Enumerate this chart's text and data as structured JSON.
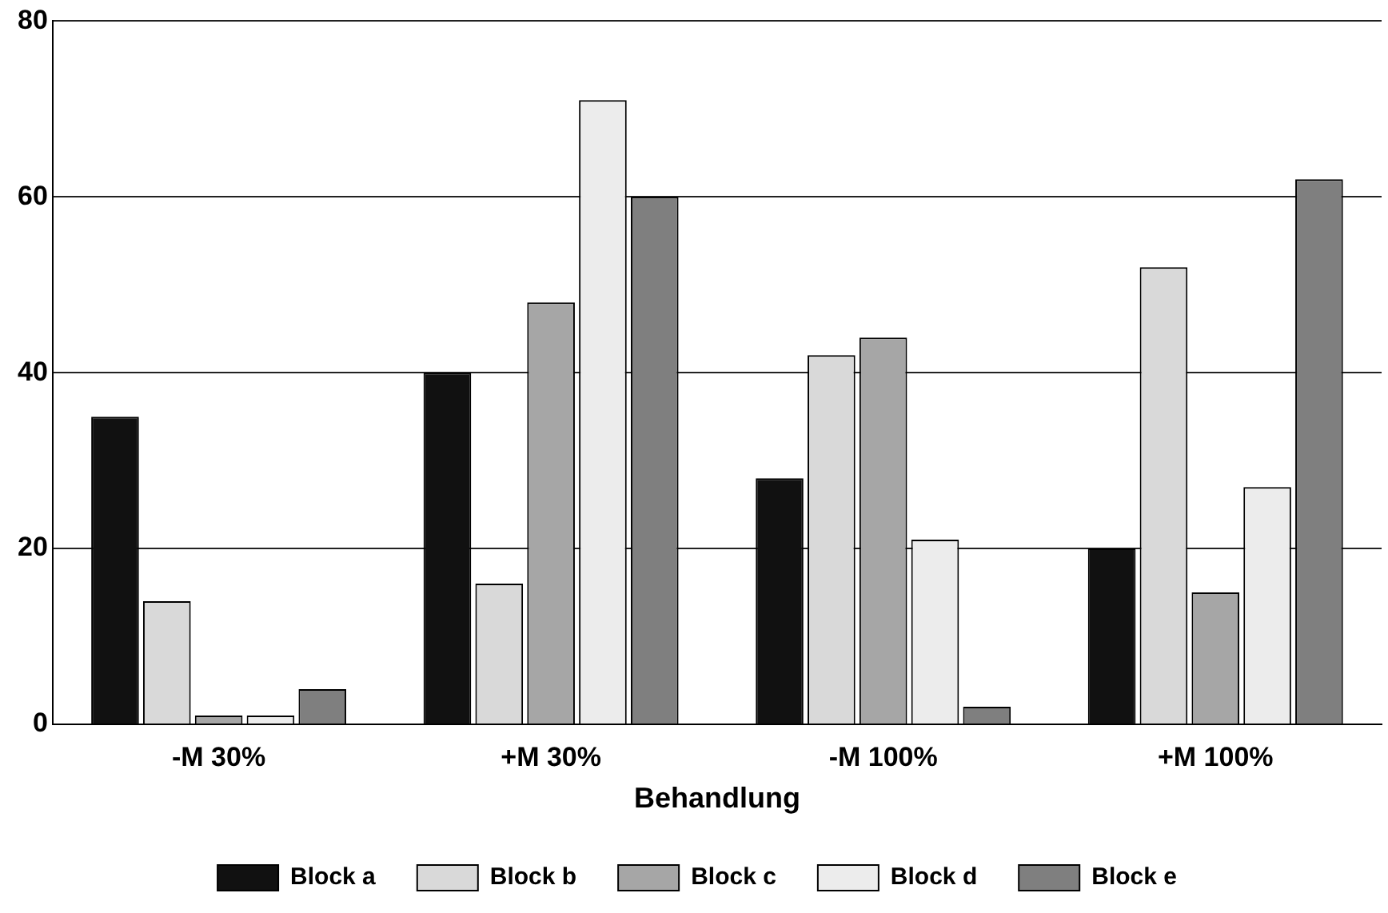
{
  "chart_data": {
    "type": "bar",
    "xlabel": "Behandlung",
    "categories": [
      "-M 30%",
      "+M 30%",
      "-M 100%",
      "+M 100%"
    ],
    "series": [
      {
        "name": "Block a",
        "color": "#111111",
        "values": [
          35,
          40,
          28,
          20
        ]
      },
      {
        "name": "Block b",
        "color": "#d9d9d9",
        "values": [
          14,
          16,
          42,
          52
        ]
      },
      {
        "name": "Block c",
        "color": "#a6a6a6",
        "values": [
          1,
          48,
          44,
          15
        ]
      },
      {
        "name": "Block d",
        "color": "#ececec",
        "values": [
          1,
          71,
          21,
          27
        ]
      },
      {
        "name": "Block e",
        "color": "#7f7f7f",
        "values": [
          4,
          60,
          2,
          62
        ]
      }
    ],
    "ylim": [
      0,
      80
    ],
    "yticks": [
      0,
      20,
      40,
      60,
      80
    ],
    "grid": "y",
    "legend": "bottom"
  }
}
